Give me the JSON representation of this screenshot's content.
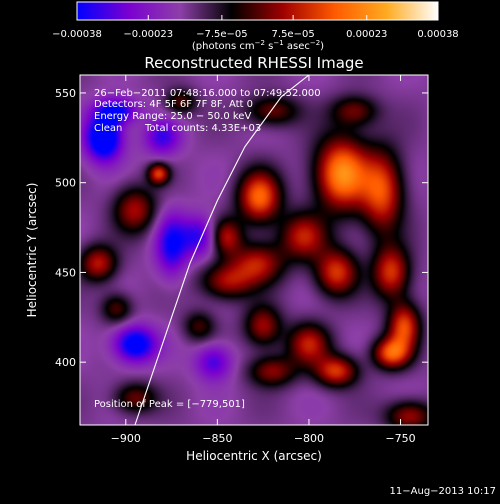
{
  "chart_data": {
    "type": "heatmap",
    "title": "Reconstructed RHESSI Image",
    "xlabel": "Heliocentric X (arcsec)",
    "ylabel": "Heliocentric Y (arcsec)",
    "xlim": [
      -925,
      -735
    ],
    "ylim": [
      365,
      560
    ],
    "x_ticks": [
      -900,
      -850,
      -800,
      -750
    ],
    "x_tick_labels": [
      "−900",
      "−850",
      "−800",
      "−750"
    ],
    "y_ticks": [
      400,
      450,
      500,
      550
    ],
    "y_tick_labels": [
      "400",
      "450",
      "500",
      "550"
    ],
    "colorbar": {
      "range": [
        -0.00038,
        0.00038
      ],
      "ticks": [
        -0.00038,
        -0.00023,
        -7.5e-05,
        7.5e-05,
        0.00023,
        0.00038
      ],
      "tick_labels": [
        "−0.00038",
        "−0.00023",
        "−7.5e−05",
        "7.5e−05",
        "0.00023",
        "0.00038"
      ],
      "units_parts": [
        "(photons cm",
        "−2",
        " s",
        "−1",
        " asec",
        "−2",
        ")"
      ],
      "colors": [
        "#0000ff",
        "#7a00d0",
        "#8d3fa8",
        "#000000",
        "#a00000",
        "#ff5a00",
        "#ffaa20",
        "#ffffff"
      ]
    },
    "info": {
      "time": "26−Feb−2011 07:48:16.000 to 07:49:52.000",
      "detectors": "Detectors: 4F 5F 6F 7F 8F, Att 0",
      "energy": "Energy Range: 25.0 − 50.0 keV",
      "clean": "Clean",
      "counts": "Total counts: 4.33E+03"
    },
    "peak_label": "Position of Peak = [−779,501]",
    "peak_position": [
      -779,
      501
    ],
    "limb_curve": [
      [
        -895,
        365
      ],
      [
        -880,
        410
      ],
      [
        -865,
        455
      ],
      [
        -850,
        490
      ],
      [
        -835,
        520
      ],
      [
        -815,
        548
      ],
      [
        -800,
        560
      ]
    ],
    "blobs": [
      {
        "x": -782,
        "y": 505,
        "sx": 10,
        "sy": 14,
        "v": 1.0
      },
      {
        "x": -760,
        "y": 495,
        "sx": 8,
        "sy": 16,
        "v": 0.75
      },
      {
        "x": -827,
        "y": 492,
        "sx": 8,
        "sy": 10,
        "v": 0.85
      },
      {
        "x": -845,
        "y": 470,
        "sx": 6,
        "sy": 7,
        "v": 0.55
      },
      {
        "x": -828,
        "y": 455,
        "sx": 10,
        "sy": 8,
        "v": 0.6
      },
      {
        "x": -845,
        "y": 445,
        "sx": 10,
        "sy": 7,
        "v": 0.55
      },
      {
        "x": -825,
        "y": 420,
        "sx": 7,
        "sy": 8,
        "v": 0.55
      },
      {
        "x": -803,
        "y": 470,
        "sx": 9,
        "sy": 9,
        "v": 0.6
      },
      {
        "x": -785,
        "y": 450,
        "sx": 8,
        "sy": 9,
        "v": 0.7
      },
      {
        "x": -755,
        "y": 450,
        "sx": 7,
        "sy": 10,
        "v": 0.7
      },
      {
        "x": -748,
        "y": 420,
        "sx": 6,
        "sy": 9,
        "v": 0.75
      },
      {
        "x": -755,
        "y": 405,
        "sx": 7,
        "sy": 6,
        "v": 0.8
      },
      {
        "x": -800,
        "y": 410,
        "sx": 8,
        "sy": 8,
        "v": 0.6
      },
      {
        "x": -785,
        "y": 395,
        "sx": 8,
        "sy": 6,
        "v": 0.7
      },
      {
        "x": -820,
        "y": 395,
        "sx": 9,
        "sy": 6,
        "v": 0.5
      },
      {
        "x": -745,
        "y": 370,
        "sx": 9,
        "sy": 6,
        "v": 0.55
      },
      {
        "x": -820,
        "y": 540,
        "sx": 10,
        "sy": 6,
        "v": 0.45
      },
      {
        "x": -775,
        "y": 540,
        "sx": 9,
        "sy": 6,
        "v": 0.45
      },
      {
        "x": -895,
        "y": 485,
        "sx": 8,
        "sy": 9,
        "v": 0.55
      },
      {
        "x": -915,
        "y": 455,
        "sx": 7,
        "sy": 7,
        "v": 0.6
      },
      {
        "x": -905,
        "y": 430,
        "sx": 6,
        "sy": 6,
        "v": 0.4
      },
      {
        "x": -870,
        "y": 545,
        "sx": 6,
        "sy": 5,
        "v": 0.4
      },
      {
        "x": -882,
        "y": 505,
        "sx": 4,
        "sy": 4,
        "v": 0.7
      },
      {
        "x": -895,
        "y": 380,
        "sx": 8,
        "sy": 6,
        "v": 0.45
      },
      {
        "x": -860,
        "y": 420,
        "sx": 6,
        "sy": 6,
        "v": 0.35
      },
      {
        "x": -912,
        "y": 525,
        "sx": 7,
        "sy": 9,
        "v": -0.9
      },
      {
        "x": -880,
        "y": 525,
        "sx": 7,
        "sy": 7,
        "v": -0.45
      },
      {
        "x": -875,
        "y": 465,
        "sx": 6,
        "sy": 12,
        "v": -0.55
      },
      {
        "x": -895,
        "y": 410,
        "sx": 8,
        "sy": 7,
        "v": -0.75
      },
      {
        "x": -860,
        "y": 470,
        "sx": 7,
        "sy": 8,
        "v": -0.5
      },
      {
        "x": -852,
        "y": 400,
        "sx": 7,
        "sy": 7,
        "v": -0.45
      },
      {
        "x": -905,
        "y": 540,
        "sx": 8,
        "sy": 5,
        "v": -0.6
      }
    ]
  },
  "footer": {
    "timestamp": "11−Aug−2013 10:17"
  }
}
